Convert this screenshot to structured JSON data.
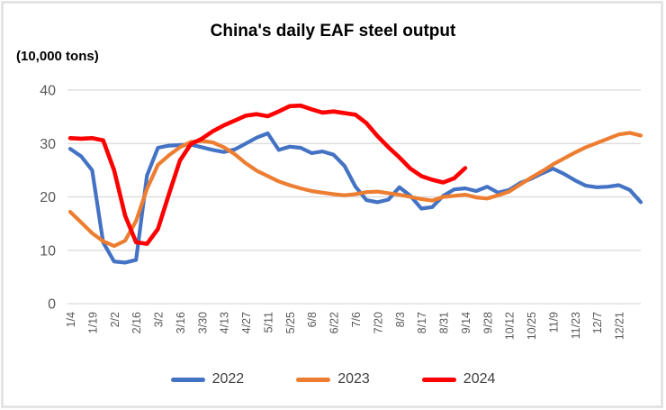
{
  "chart_data": {
    "type": "line",
    "title": "China's daily EAF steel output",
    "unit_label": "(10,000 tons)",
    "xlabel": "",
    "ylabel": "",
    "ylim": [
      0,
      40
    ],
    "yticks": [
      "0",
      "10",
      "20",
      "30",
      "40"
    ],
    "grid": "horizontal",
    "gridline_color": "#D9D9D9",
    "axis_text_color": "#595959",
    "legend_position": "bottom",
    "x_tick_rotation": -90,
    "x_note": "weekly data points; one tick label every second point",
    "x_tick_labels": [
      "1/4",
      "1/19",
      "2/2",
      "2/16",
      "3/2",
      "3/16",
      "3/30",
      "4/13",
      "4/27",
      "5/11",
      "5/25",
      "6/8",
      "6/22",
      "7/6",
      "7/20",
      "8/3",
      "8/17",
      "8/31",
      "9/14",
      "9/28",
      "10/12",
      "10/25",
      "11/9",
      "11/23",
      "12/7",
      "12/21"
    ],
    "series": [
      {
        "name": "2022",
        "color": "#4472C4",
        "values": [
          29.0,
          27.6,
          25.0,
          11.5,
          7.9,
          7.7,
          8.2,
          24.0,
          29.2,
          29.6,
          29.7,
          29.8,
          29.3,
          28.8,
          28.4,
          28.9,
          30.0,
          31.1,
          31.9,
          28.8,
          29.4,
          29.2,
          28.2,
          28.5,
          27.9,
          25.8,
          21.9,
          19.4,
          19.0,
          19.5,
          21.8,
          20.2,
          17.8,
          18.1,
          20.2,
          21.4,
          21.6,
          21.1,
          21.9,
          20.8,
          21.3,
          22.6,
          23.4,
          24.4,
          25.3,
          24.3,
          23.1,
          22.1,
          21.8,
          21.9,
          22.2,
          21.3,
          19.0
        ]
      },
      {
        "name": "2023",
        "color": "#ED7D31",
        "values": [
          17.2,
          15.2,
          13.2,
          11.7,
          10.8,
          11.8,
          15.5,
          21.5,
          26.0,
          27.8,
          29.3,
          30.3,
          30.5,
          30.2,
          29.3,
          28.0,
          26.3,
          24.9,
          23.9,
          22.9,
          22.2,
          21.6,
          21.1,
          20.8,
          20.5,
          20.3,
          20.5,
          20.9,
          21.0,
          20.7,
          20.4,
          20.0,
          19.6,
          19.3,
          20.0,
          20.2,
          20.4,
          19.9,
          19.7,
          20.3,
          21.0,
          22.3,
          23.6,
          24.8,
          26.1,
          27.2,
          28.3,
          29.3,
          30.1,
          30.9,
          31.7,
          32.0,
          31.5
        ]
      },
      {
        "name": "2024",
        "color": "#FF0000",
        "values": [
          31.0,
          30.9,
          31.0,
          30.6,
          25.0,
          16.5,
          11.5,
          11.2,
          14.0,
          20.5,
          26.8,
          29.9,
          30.9,
          32.3,
          33.4,
          34.3,
          35.2,
          35.5,
          35.1,
          36.0,
          37.0,
          37.1,
          36.4,
          35.8,
          36.0,
          35.7,
          35.4,
          33.8,
          31.4,
          29.3,
          27.4,
          25.3,
          23.9,
          23.2,
          22.7,
          23.5,
          25.4,
          null,
          null,
          null,
          null,
          null,
          null,
          null,
          null,
          null,
          null,
          null,
          null,
          null,
          null,
          null,
          null
        ]
      }
    ]
  }
}
